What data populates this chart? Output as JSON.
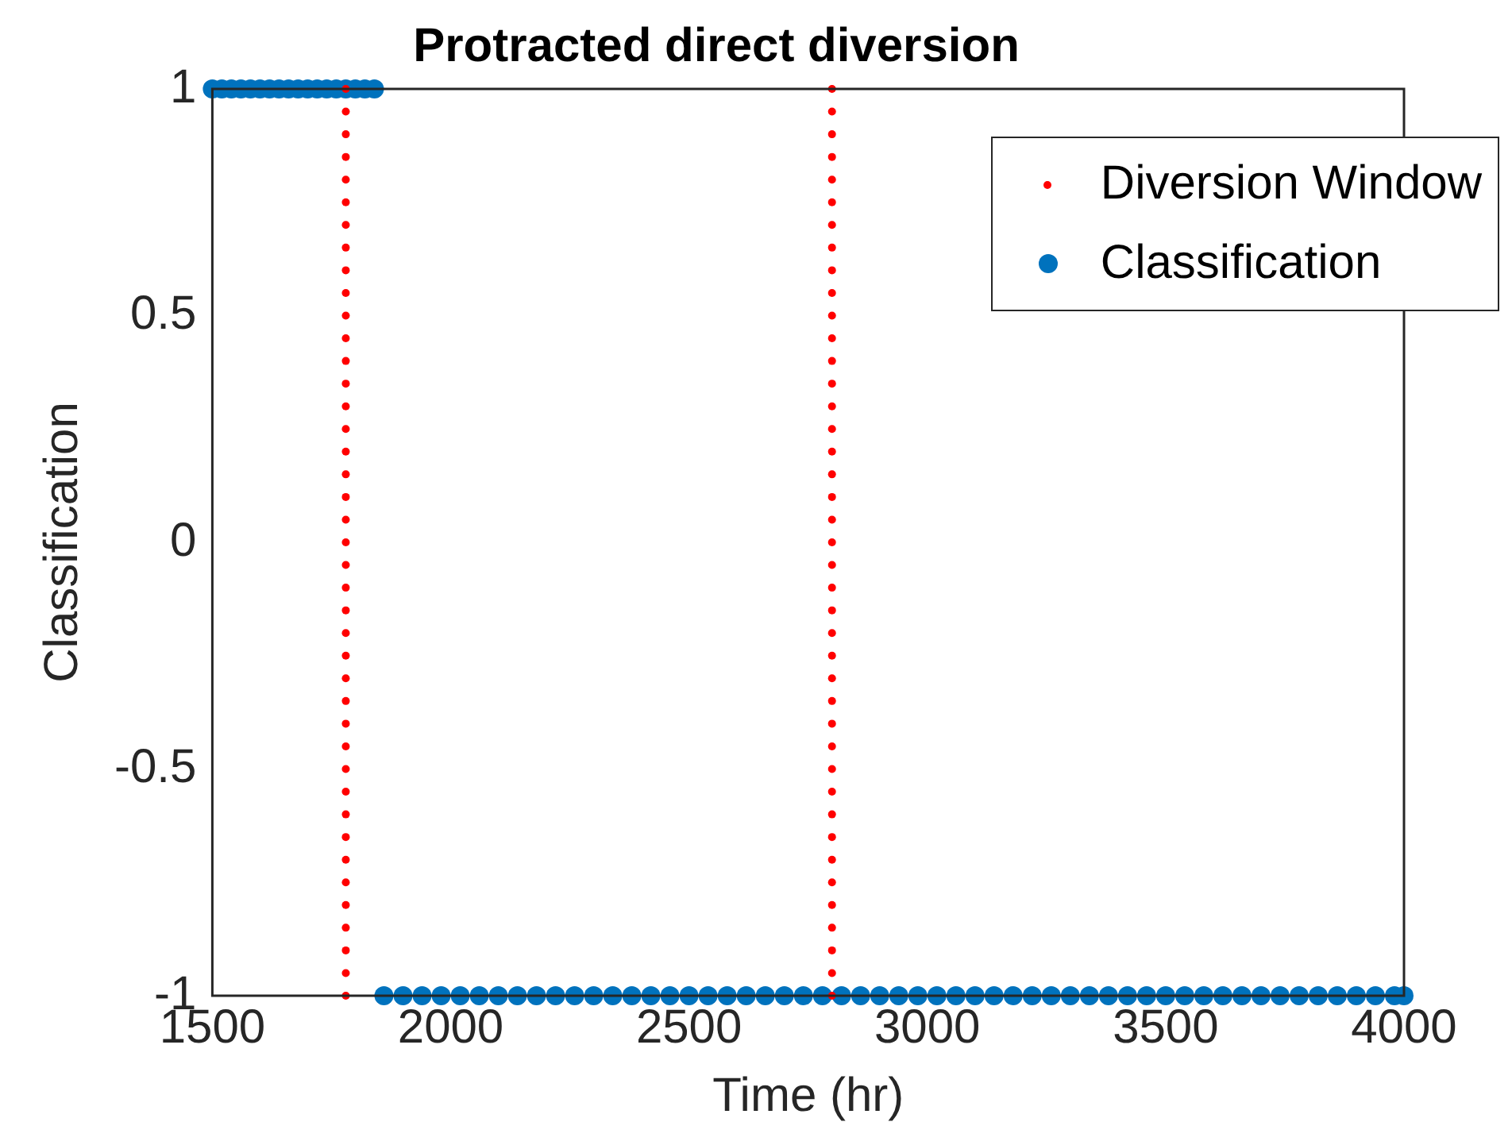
{
  "chart_data": {
    "type": "scatter",
    "title": "Protracted direct diversion",
    "xlabel": "Time (hr)",
    "ylabel": "Classification",
    "xlim": [
      1500,
      4000
    ],
    "xticks": [
      1500,
      2000,
      2500,
      3000,
      3500,
      4000
    ],
    "ylim": [
      -1,
      1
    ],
    "yticks": [
      -1,
      -0.5,
      0,
      0.5,
      1
    ],
    "grid": false,
    "legend": "top right",
    "marker": "circle",
    "series": [
      {
        "name": "Diversion Window",
        "color": "#ff0000",
        "x": [
          1780,
          1780,
          1780,
          1780,
          1780,
          1780,
          1780,
          1780,
          1780,
          1780,
          1780,
          1780,
          1780,
          1780,
          1780,
          1780,
          1780,
          1780,
          1780,
          1780,
          1780,
          1780,
          1780,
          1780,
          1780,
          1780,
          1780,
          1780,
          1780,
          1780,
          1780,
          1780,
          1780,
          1780,
          1780,
          1780,
          1780,
          1780,
          1780,
          1780,
          1780,
          2800,
          2800,
          2800,
          2800,
          2800,
          2800,
          2800,
          2800,
          2800,
          2800,
          2800,
          2800,
          2800,
          2800,
          2800,
          2800,
          2800,
          2800,
          2800,
          2800,
          2800,
          2800,
          2800,
          2800,
          2800,
          2800,
          2800,
          2800,
          2800,
          2800,
          2800,
          2800,
          2800,
          2800,
          2800,
          2800,
          2800,
          2800,
          2800,
          2800,
          2800
        ],
        "values": [
          -1,
          -0.95,
          -0.9,
          -0.85,
          -0.8,
          -0.75,
          -0.7,
          -0.65,
          -0.6,
          -0.55,
          -0.5,
          -0.45,
          -0.4,
          -0.35,
          -0.3,
          -0.25,
          -0.2,
          -0.15,
          -0.1,
          -0.05,
          0,
          0.05,
          0.1,
          0.15,
          0.2,
          0.25,
          0.3,
          0.35,
          0.4,
          0.45,
          0.5,
          0.55,
          0.6,
          0.65,
          0.7,
          0.75,
          0.8,
          0.85,
          0.9,
          0.95,
          1,
          -1,
          -0.95,
          -0.9,
          -0.85,
          -0.8,
          -0.75,
          -0.7,
          -0.65,
          -0.6,
          -0.55,
          -0.5,
          -0.45,
          -0.4,
          -0.35,
          -0.3,
          -0.25,
          -0.2,
          -0.15,
          -0.1,
          -0.05,
          0,
          0.05,
          0.1,
          0.15,
          0.2,
          0.25,
          0.3,
          0.35,
          0.4,
          0.45,
          0.5,
          0.55,
          0.6,
          0.65,
          0.7,
          0.75,
          0.8,
          0.85,
          0.9,
          0.95,
          1
        ]
      },
      {
        "name": "Classification",
        "color": "#0072bd",
        "x": [
          1500,
          1520,
          1540,
          1560,
          1580,
          1600,
          1620,
          1640,
          1660,
          1680,
          1700,
          1720,
          1740,
          1760,
          1780,
          1800,
          1820,
          1840,
          1860,
          1900,
          1940,
          1980,
          2020,
          2060,
          2100,
          2140,
          2180,
          2220,
          2260,
          2300,
          2340,
          2380,
          2420,
          2460,
          2500,
          2540,
          2580,
          2620,
          2660,
          2700,
          2740,
          2780,
          2820,
          2860,
          2900,
          2940,
          2980,
          3020,
          3060,
          3100,
          3140,
          3180,
          3220,
          3260,
          3300,
          3340,
          3380,
          3420,
          3460,
          3500,
          3540,
          3580,
          3620,
          3660,
          3700,
          3740,
          3780,
          3820,
          3860,
          3900,
          3940,
          3980,
          4000
        ],
        "values": [
          1,
          1,
          1,
          1,
          1,
          1,
          1,
          1,
          1,
          1,
          1,
          1,
          1,
          1,
          1,
          1,
          1,
          1,
          -1,
          -1,
          -1,
          -1,
          -1,
          -1,
          -1,
          -1,
          -1,
          -1,
          -1,
          -1,
          -1,
          -1,
          -1,
          -1,
          -1,
          -1,
          -1,
          -1,
          -1,
          -1,
          -1,
          -1,
          -1,
          -1,
          -1,
          -1,
          -1,
          -1,
          -1,
          -1,
          -1,
          -1,
          -1,
          -1,
          -1,
          -1,
          -1,
          -1,
          -1,
          -1,
          -1,
          -1,
          -1,
          -1,
          -1,
          -1,
          -1,
          -1,
          -1,
          -1,
          -1,
          -1,
          -1
        ]
      }
    ]
  }
}
